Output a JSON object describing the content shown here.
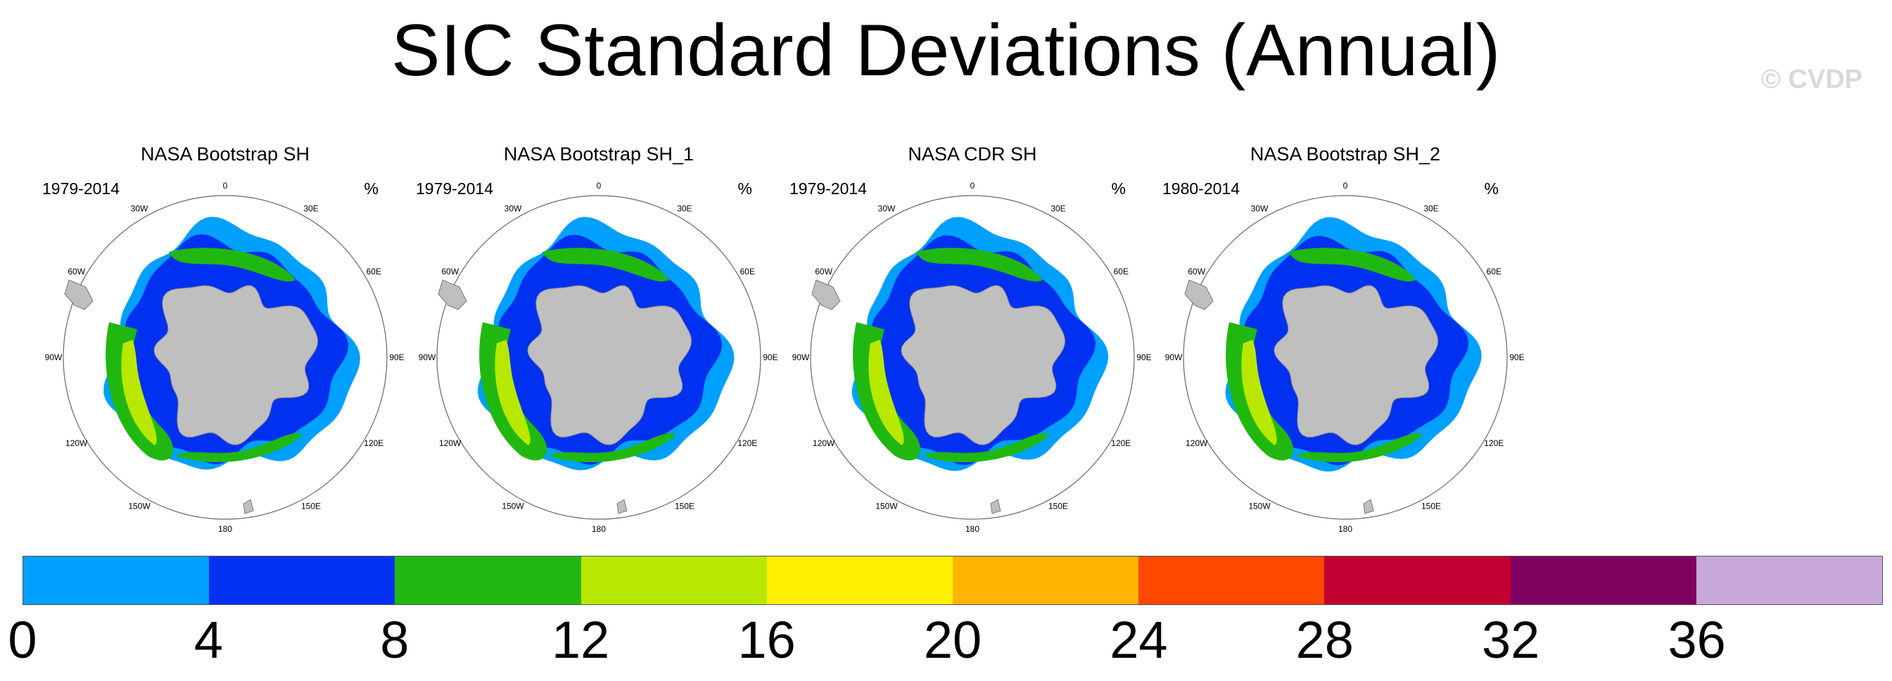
{
  "title": "SIC Standard Deviations (Annual)",
  "watermark": "© CVDP",
  "panels": [
    {
      "title": "NASA Bootstrap SH",
      "period": "1979-2014",
      "unit": "%"
    },
    {
      "title": "NASA Bootstrap SH_1",
      "period": "1979-2014",
      "unit": "%"
    },
    {
      "title": "NASA CDR SH",
      "period": "1979-2014",
      "unit": "%"
    },
    {
      "title": "NASA Bootstrap SH_2",
      "period": "1980-2014",
      "unit": "%"
    }
  ],
  "longitude_labels": [
    "0",
    "30E",
    "60E",
    "90E",
    "120E",
    "150E",
    "180",
    "150W",
    "120W",
    "90W",
    "60W",
    "30W"
  ],
  "colorbar": {
    "colors": [
      "#00a0ff",
      "#0030f0",
      "#20b810",
      "#b8e800",
      "#fff000",
      "#ffb400",
      "#ff4800",
      "#c00030",
      "#800060",
      "#c8a8d8"
    ],
    "ticks": [
      "0",
      "4",
      "8",
      "12",
      "16",
      "20",
      "24",
      "28",
      "32",
      "36"
    ]
  }
}
